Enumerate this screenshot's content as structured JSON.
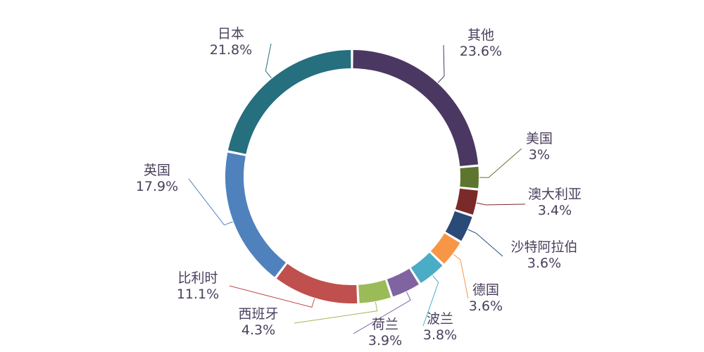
{
  "chart_data": {
    "type": "pie",
    "style": "donut",
    "legend": "none",
    "start": "top",
    "direction": "clockwise",
    "categories": [
      "其他",
      "美国",
      "澳大利亚",
      "沙特阿拉伯",
      "德国",
      "波兰",
      "荷兰",
      "西班牙",
      "比利时",
      "英国",
      "日本"
    ],
    "values": [
      23.6,
      3,
      3.4,
      3.6,
      3.6,
      3.8,
      3.9,
      4.3,
      11.1,
      17.9,
      21.8
    ],
    "value_labels": [
      "23.6%",
      "3%",
      "3.4%",
      "3.6%",
      "3.6%",
      "3.8%",
      "3.9%",
      "4.3%",
      "11.1%",
      "17.9%",
      "21.8%"
    ],
    "colors": [
      "#4b3862",
      "#5e7530",
      "#7b2a2a",
      "#2a4a78",
      "#f79646",
      "#4bacc6",
      "#8064a2",
      "#9bbb59",
      "#c0504d",
      "#4f81bd",
      "#256f7e"
    ]
  }
}
